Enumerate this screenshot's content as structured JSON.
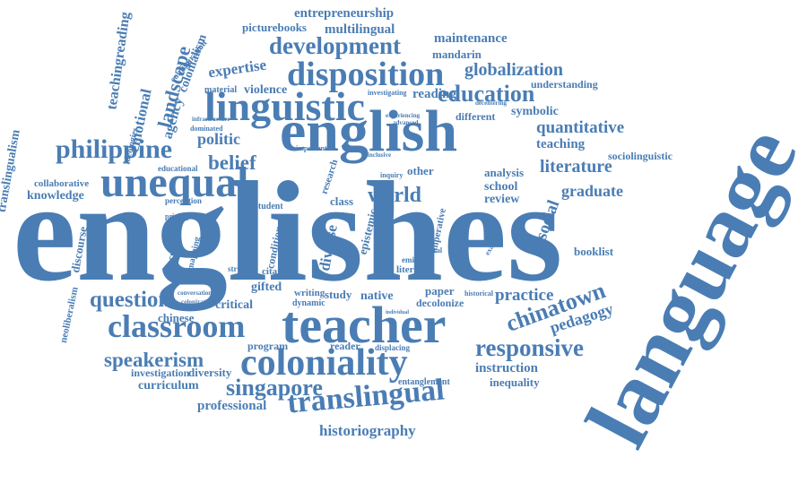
{
  "cloud": {
    "color": "#4a7db4",
    "words": [
      {
        "text": "englishes",
        "size": 160
      },
      {
        "text": "language",
        "size": 100
      },
      {
        "text": "english",
        "size": 66
      },
      {
        "text": "teacher",
        "size": 58
      },
      {
        "text": "unequal",
        "size": 48
      },
      {
        "text": "linguistic",
        "size": 46
      },
      {
        "text": "coloniality",
        "size": 42
      },
      {
        "text": "disposition",
        "size": 38
      },
      {
        "text": "classroom",
        "size": 36
      },
      {
        "text": "translingual",
        "size": 34
      },
      {
        "text": "development",
        "size": 27
      },
      {
        "text": "philippine",
        "size": 30
      },
      {
        "text": "responsive",
        "size": 27
      },
      {
        "text": "chinatown",
        "size": 26
      },
      {
        "text": "singapore",
        "size": 26
      },
      {
        "text": "education",
        "size": 26
      },
      {
        "text": "question",
        "size": 25
      },
      {
        "text": "speakerism",
        "size": 23
      },
      {
        "text": "world",
        "size": 24
      },
      {
        "text": "belief",
        "size": 23
      },
      {
        "text": "landscape",
        "size": 22
      },
      {
        "text": "globalization",
        "size": 20
      },
      {
        "text": "literature",
        "size": 20
      },
      {
        "text": "quantitative",
        "size": 19
      },
      {
        "text": "practice",
        "size": 19
      },
      {
        "text": "social",
        "size": 19
      },
      {
        "text": "graduate",
        "size": 18
      },
      {
        "text": "pedagogy",
        "size": 18
      },
      {
        "text": "historiography",
        "size": 17
      },
      {
        "text": "politic",
        "size": 18
      },
      {
        "text": "expertise",
        "size": 17
      },
      {
        "text": "diverse",
        "size": 17
      },
      {
        "text": "entrepreneurship",
        "size": 15
      },
      {
        "text": "multilingual",
        "size": 15
      },
      {
        "text": "maintenance",
        "size": 15
      },
      {
        "text": "mandarin",
        "size": 13
      },
      {
        "text": "picturebooks",
        "size": 13
      },
      {
        "text": "reading",
        "size": 15
      },
      {
        "text": "violence",
        "size": 14
      },
      {
        "text": "teaching",
        "size": 15
      },
      {
        "text": "sociolinguistic",
        "size": 12
      },
      {
        "text": "symbolic",
        "size": 14
      },
      {
        "text": "understanding",
        "size": 12
      },
      {
        "text": "different",
        "size": 12
      },
      {
        "text": "analysis",
        "size": 13
      },
      {
        "text": "school",
        "size": 14
      },
      {
        "text": "review",
        "size": 14
      },
      {
        "text": "instruction",
        "size": 15
      },
      {
        "text": "inequality",
        "size": 13
      },
      {
        "text": "entanglement",
        "size": 10
      },
      {
        "text": "professional",
        "size": 15
      },
      {
        "text": "curriculum",
        "size": 14
      },
      {
        "text": "investigation",
        "size": 12
      },
      {
        "text": "diversity",
        "size": 13
      },
      {
        "text": "chinese",
        "size": 13
      },
      {
        "text": "program",
        "size": 12
      },
      {
        "text": "reader",
        "size": 12
      },
      {
        "text": "displacing",
        "size": 9
      },
      {
        "text": "critical",
        "size": 14
      },
      {
        "text": "writing",
        "size": 11
      },
      {
        "text": "dynamic",
        "size": 10
      },
      {
        "text": "study",
        "size": 13
      },
      {
        "text": "native",
        "size": 14
      },
      {
        "text": "paper",
        "size": 13
      },
      {
        "text": "decolonize",
        "size": 12
      },
      {
        "text": "booklist",
        "size": 13
      },
      {
        "text": "citation",
        "size": 11
      },
      {
        "text": "gifted",
        "size": 14
      },
      {
        "text": "struggle",
        "size": 9
      },
      {
        "text": "knowledge",
        "size": 14
      },
      {
        "text": "collaborative",
        "size": 11
      },
      {
        "text": "perception",
        "size": 9
      },
      {
        "text": "educational",
        "size": 9
      },
      {
        "text": "student",
        "size": 10
      },
      {
        "text": "class",
        "size": 13
      },
      {
        "text": "other",
        "size": 13
      },
      {
        "text": "literacy",
        "size": 11
      },
      {
        "text": "emirate",
        "size": 9
      },
      {
        "text": "historical",
        "size": 8
      },
      {
        "text": "inquiry",
        "size": 8
      },
      {
        "text": "important",
        "size": 8
      },
      {
        "text": "experiencing",
        "size": 7
      },
      {
        "text": "advanced",
        "size": 7
      },
      {
        "text": "decentering",
        "size": 7
      },
      {
        "text": "investigating",
        "size": 8
      },
      {
        "text": "inclusive",
        "size": 7
      },
      {
        "text": "conversation",
        "size": 7
      },
      {
        "text": "colonization",
        "size": 7
      },
      {
        "text": "privileged",
        "size": 8
      },
      {
        "text": "dominated",
        "size": 8
      },
      {
        "text": "infrastructure",
        "size": 7
      },
      {
        "text": "material",
        "size": 10
      },
      {
        "text": "cultural",
        "size": 8
      },
      {
        "text": "translingualism",
        "size": 14
      },
      {
        "text": "teachingreading",
        "size": 16
      },
      {
        "text": "emotional",
        "size": 17
      },
      {
        "text": "agency",
        "size": 16
      },
      {
        "text": "colonialism",
        "size": 14
      },
      {
        "text": "configuration",
        "size": 10
      },
      {
        "text": "ideologies",
        "size": 10
      },
      {
        "text": "discourse",
        "size": 13
      },
      {
        "text": "neoliberalism",
        "size": 11
      },
      {
        "text": "curricula",
        "size": 11
      },
      {
        "text": "mapping",
        "size": 10
      },
      {
        "text": "condition",
        "size": 12
      },
      {
        "text": "epistemic",
        "size": 13
      },
      {
        "text": "research",
        "size": 11
      },
      {
        "text": "imperative",
        "size": 11
      },
      {
        "text": "example",
        "size": 8
      },
      {
        "text": "individual",
        "size": 6
      }
    ]
  }
}
